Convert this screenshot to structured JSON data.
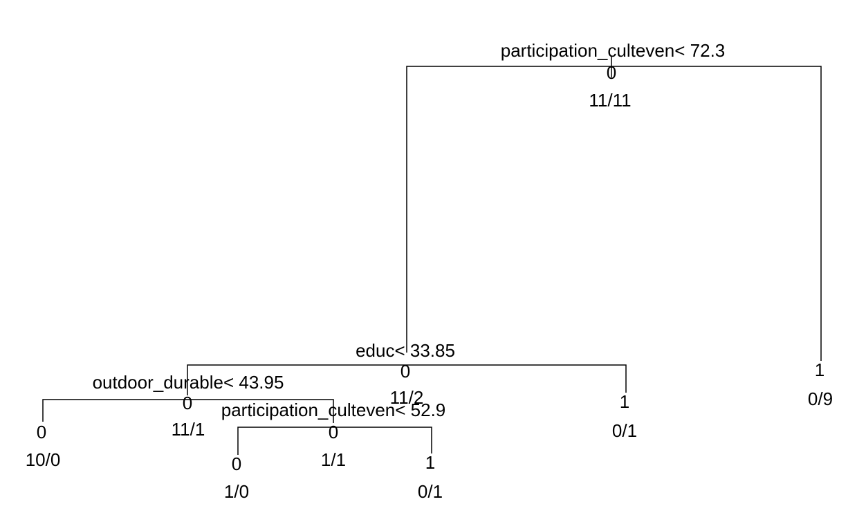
{
  "tree": {
    "line_color": "#000000",
    "text_color": "#000000",
    "root": {
      "split": "participation_culteven< 72.3",
      "class": "0",
      "counts": "11/11"
    },
    "node_educ": {
      "split": "educ< 33.85",
      "class": "0",
      "counts": "11/2"
    },
    "node_outdoor": {
      "split": "outdoor_durable< 43.95",
      "class": "0",
      "counts": "11/1"
    },
    "node_part2": {
      "split": "participation_culteven< 52.9",
      "class": "0",
      "counts": "1/1"
    },
    "leaf_a": {
      "class": "0",
      "counts": "10/0"
    },
    "leaf_b": {
      "class": "0",
      "counts": "1/0"
    },
    "leaf_c": {
      "class": "1",
      "counts": "0/1"
    },
    "leaf_d": {
      "class": "1",
      "counts": "0/1"
    },
    "leaf_e": {
      "class": "1",
      "counts": "0/9"
    }
  }
}
